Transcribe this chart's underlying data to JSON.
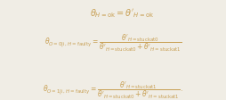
{
  "bg_color": "#f0ede5",
  "text_color": "#c8a055",
  "figsize": [
    2.54,
    1.13
  ],
  "dpi": 100,
  "eq1": "$\\theta_{H{=}\\mathrm{ok}} = \\theta'_{H{=}\\mathrm{ok}}$",
  "eq2_full": "$\\theta_{O{=}0|\\mathrm{i},\\,H{=}\\mathrm{faulty}} = \\dfrac{\\theta'_{H{=}\\mathrm{stuckat0}}}{\\theta'_{H{=}\\mathrm{stuckat0}} + \\theta'_{H{=}\\mathrm{stuckat1}}}$",
  "eq3_full": "$\\theta_{O{=}1|\\mathrm{i},\\,H{=}\\mathrm{faulty}} = \\dfrac{\\theta'_{H{=}\\mathrm{stuckat1}}}{\\theta'_{H{=}\\mathrm{stuckat0}} + \\theta'_{H{=}\\mathrm{stuckat1}}}\\,.$",
  "fontsize_eq1": 7,
  "fontsize_eq23": 5.5
}
